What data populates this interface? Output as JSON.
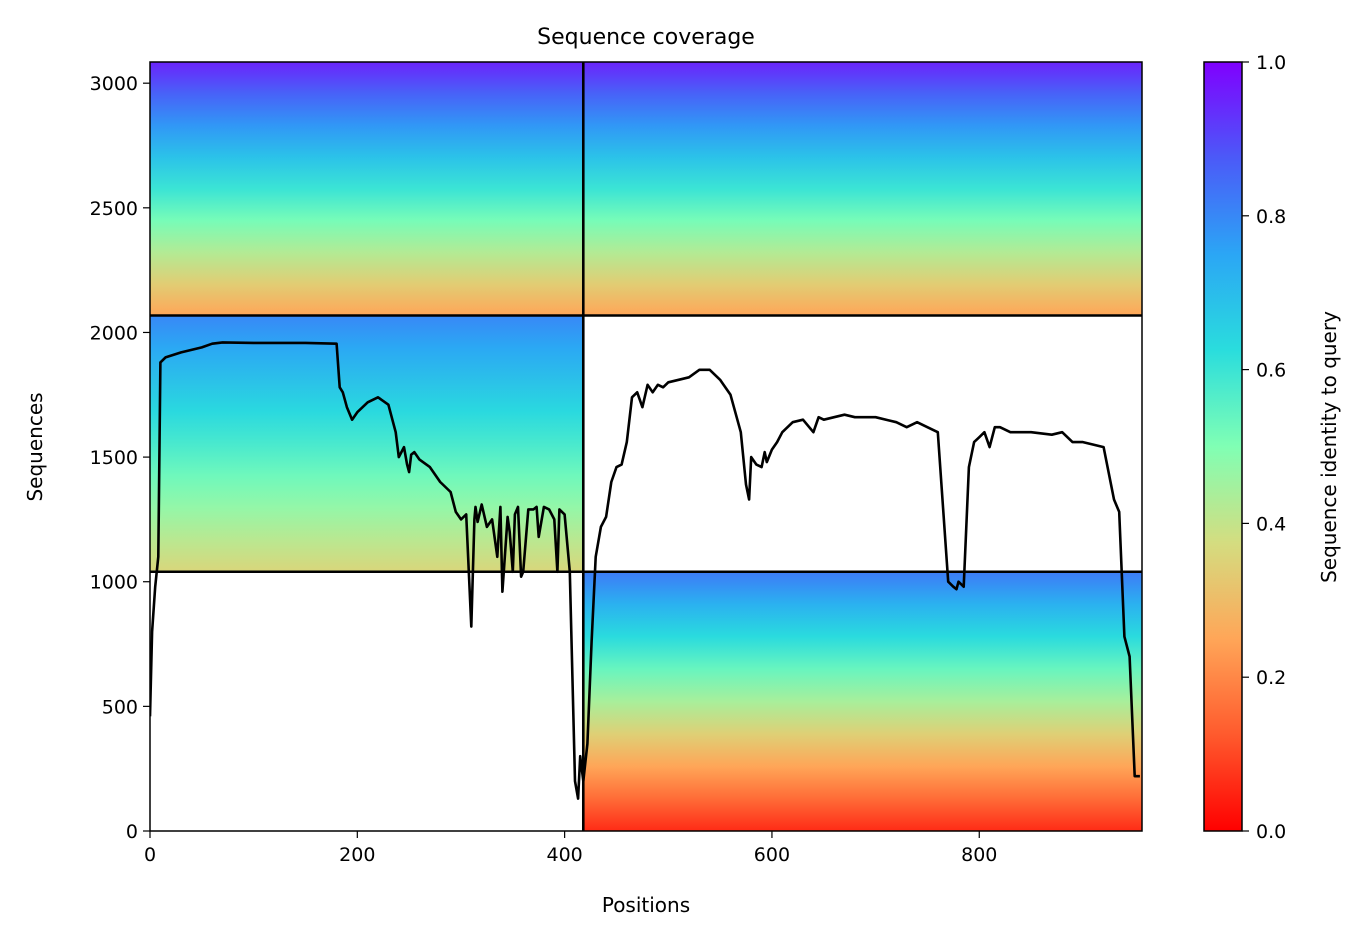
{
  "chart_data": {
    "type": "heatmap",
    "title": "Sequence coverage",
    "xlabel": "Positions",
    "ylabel": "Sequences",
    "xlim": [
      0,
      957
    ],
    "ylim": [
      0,
      3085
    ],
    "x_ticks": [
      "0",
      "200",
      "400",
      "600",
      "800"
    ],
    "x_tick_values": [
      0,
      200,
      400,
      600,
      800
    ],
    "y_ticks": [
      "0",
      "500",
      "1000",
      "1500",
      "2000",
      "2500",
      "3000"
    ],
    "y_tick_values": [
      0,
      500,
      1000,
      1500,
      2000,
      2500,
      3000
    ],
    "colorbar": {
      "label": "Sequence identity to query",
      "colormap": "rainbow_r",
      "range": [
        0.0,
        1.0
      ],
      "ticks": [
        "0.0",
        "0.2",
        "0.4",
        "0.6",
        "0.8",
        "1.0"
      ],
      "tick_values": [
        0.0,
        0.2,
        0.4,
        0.6,
        0.8,
        1.0
      ]
    },
    "chain_boundaries": {
      "x": 418,
      "y": [
        1040,
        2068
      ]
    },
    "blocks": [
      {
        "x": [
          0,
          418
        ],
        "y": [
          2068,
          3085
        ],
        "identity_top": 0.95,
        "identity_bottom": 0.25
      },
      {
        "x": [
          0,
          418
        ],
        "y": [
          1040,
          2068
        ],
        "identity_top": 0.8,
        "identity_bottom": 0.36
      },
      {
        "x": [
          418,
          957
        ],
        "y": [
          2068,
          3085
        ],
        "identity_top": 0.95,
        "identity_bottom": 0.25
      },
      {
        "x": [
          418,
          957
        ],
        "y": [
          0,
          1040
        ],
        "identity_top": 0.82,
        "identity_bottom": 0.06
      }
    ],
    "coverage_line": {
      "x": [
        0,
        2,
        5,
        8,
        10,
        15,
        30,
        50,
        60,
        70,
        100,
        150,
        180,
        183,
        186,
        190,
        195,
        200,
        210,
        220,
        230,
        237,
        240,
        245,
        248,
        250,
        252,
        255,
        260,
        270,
        280,
        290,
        295,
        300,
        305,
        310,
        313,
        314,
        316,
        320,
        325,
        330,
        335,
        338,
        340,
        345,
        347,
        350,
        352,
        355,
        358,
        360,
        365,
        370,
        373,
        375,
        380,
        385,
        390,
        393,
        395,
        400,
        405,
        410,
        413,
        415,
        418,
        422,
        426,
        430,
        435,
        440,
        445,
        450,
        455,
        460,
        465,
        470,
        475,
        480,
        485,
        490,
        495,
        500,
        510,
        520,
        530,
        540,
        550,
        560,
        570,
        575,
        578,
        580,
        585,
        590,
        593,
        595,
        600,
        605,
        610,
        620,
        630,
        640,
        645,
        650,
        660,
        670,
        680,
        700,
        720,
        730,
        740,
        750,
        760,
        770,
        775,
        778,
        780,
        785,
        790,
        795,
        800,
        805,
        810,
        815,
        820,
        830,
        850,
        870,
        880,
        890,
        900,
        910,
        920,
        930,
        935,
        940,
        945,
        950,
        955,
        957
      ],
      "y": [
        460,
        800,
        980,
        1100,
        1880,
        1900,
        1920,
        1940,
        1955,
        1960,
        1958,
        1958,
        1955,
        1780,
        1760,
        1700,
        1650,
        1680,
        1720,
        1740,
        1710,
        1600,
        1500,
        1540,
        1470,
        1440,
        1510,
        1520,
        1490,
        1460,
        1400,
        1360,
        1280,
        1250,
        1270,
        820,
        1250,
        1300,
        1240,
        1310,
        1220,
        1250,
        1100,
        1300,
        960,
        1260,
        1200,
        1040,
        1270,
        1300,
        1020,
        1040,
        1290,
        1290,
        1300,
        1180,
        1300,
        1290,
        1250,
        1040,
        1290,
        1270,
        1040,
        200,
        130,
        300,
        200,
        350,
        760,
        1100,
        1220,
        1260,
        1400,
        1460,
        1470,
        1560,
        1740,
        1760,
        1700,
        1790,
        1760,
        1790,
        1780,
        1800,
        1810,
        1820,
        1850,
        1850,
        1810,
        1750,
        1600,
        1390,
        1330,
        1500,
        1470,
        1460,
        1520,
        1480,
        1530,
        1560,
        1600,
        1640,
        1650,
        1600,
        1660,
        1650,
        1660,
        1670,
        1660,
        1660,
        1640,
        1620,
        1640,
        1620,
        1600,
        1000,
        980,
        970,
        1000,
        980,
        1460,
        1560,
        1580,
        1600,
        1540,
        1620,
        1620,
        1600,
        1600,
        1590,
        1600,
        1560,
        1560,
        1550,
        1540,
        1330,
        1280,
        780,
        700,
        220,
        220
      ]
    }
  }
}
